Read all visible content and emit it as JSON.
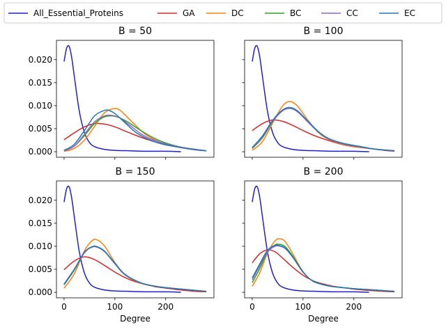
{
  "chart_data": {
    "type": "line",
    "legend": {
      "placement": "top",
      "ncol": 6,
      "entries": [
        {
          "name": "All_Essential_Proteins",
          "color": "#1f1fcc"
        },
        {
          "name": "GA",
          "color": "#d62728"
        },
        {
          "name": "DC",
          "color": "#ff7f0e"
        },
        {
          "name": "BC",
          "color": "#2ca02c"
        },
        {
          "name": "CC",
          "color": "#9467bd"
        },
        {
          "name": "EC",
          "color": "#1f77b4"
        }
      ]
    },
    "shared_axes": {
      "xlabel": "Degree",
      "xlim": [
        -15,
        295
      ],
      "ylim": [
        -0.0012,
        0.0242
      ],
      "xticks": [
        0,
        100,
        200
      ],
      "yticks": [
        0.0,
        0.005,
        0.01,
        0.015,
        0.02
      ],
      "ytick_labels": [
        "0.000",
        "0.005",
        "0.010",
        "0.015",
        "0.020"
      ],
      "grid": false
    },
    "panels": [
      {
        "title": "B = 50",
        "series": [
          {
            "name": "All_Essential_Proteins",
            "x": [
              0,
              5,
              10,
              15,
              20,
              30,
              40,
              50,
              60,
              80,
              100,
              130,
              160,
              200,
              230
            ],
            "y": [
              0.0196,
              0.0225,
              0.0229,
              0.0205,
              0.0165,
              0.0088,
              0.0042,
              0.002,
              0.0011,
              0.0005,
              0.0003,
              0.0002,
              0.0001,
              0.0001,
              0.0
            ]
          },
          {
            "name": "GA",
            "x": [
              0,
              20,
              40,
              60,
              80,
              100,
              120,
              140,
              160,
              180,
              200,
              230,
              260,
              280
            ],
            "y": [
              0.0026,
              0.0041,
              0.0054,
              0.0061,
              0.006,
              0.0054,
              0.0045,
              0.0036,
              0.0028,
              0.0021,
              0.0015,
              0.0009,
              0.0004,
              0.0002
            ]
          },
          {
            "name": "DC",
            "x": [
              0,
              20,
              40,
              60,
              80,
              100,
              110,
              120,
              140,
              160,
              180,
              200,
              230,
              260,
              280
            ],
            "y": [
              0.0001,
              0.0007,
              0.0025,
              0.0055,
              0.0085,
              0.0094,
              0.009,
              0.008,
              0.0058,
              0.0038,
              0.0025,
              0.0016,
              0.0009,
              0.0004,
              0.0002
            ]
          },
          {
            "name": "BC",
            "x": [
              0,
              20,
              40,
              60,
              80,
              100,
              120,
              140,
              160,
              180,
              200,
              230,
              260,
              280
            ],
            "y": [
              0.0002,
              0.0012,
              0.0035,
              0.0061,
              0.0076,
              0.0077,
              0.0068,
              0.0054,
              0.004,
              0.0028,
              0.0019,
              0.001,
              0.0005,
              0.0002
            ]
          },
          {
            "name": "CC",
            "x": [
              0,
              20,
              40,
              60,
              80,
              95,
              110,
              130,
              150,
              170,
              200,
              230,
              260,
              280
            ],
            "y": [
              0.0002,
              0.0012,
              0.0038,
              0.0065,
              0.0078,
              0.0079,
              0.0073,
              0.0057,
              0.004,
              0.0028,
              0.0017,
              0.001,
              0.0005,
              0.0002
            ]
          },
          {
            "name": "EC",
            "x": [
              0,
              20,
              40,
              60,
              80,
              90,
              100,
              120,
              140,
              160,
              180,
              200,
              230,
              260,
              280
            ],
            "y": [
              0.0003,
              0.0016,
              0.0046,
              0.0078,
              0.009,
              0.0089,
              0.0083,
              0.0063,
              0.0043,
              0.003,
              0.0021,
              0.0015,
              0.0009,
              0.0004,
              0.0002
            ]
          }
        ]
      },
      {
        "title": "B = 100",
        "series": [
          {
            "name": "All_Essential_Proteins",
            "x": [
              0,
              5,
              10,
              15,
              20,
              30,
              40,
              50,
              60,
              80,
              100,
              130,
              160,
              200,
              230
            ],
            "y": [
              0.0196,
              0.0225,
              0.0229,
              0.0205,
              0.0165,
              0.0088,
              0.0042,
              0.002,
              0.0011,
              0.0005,
              0.0003,
              0.0002,
              0.0001,
              0.0001,
              0.0
            ]
          },
          {
            "name": "GA",
            "x": [
              0,
              20,
              40,
              60,
              80,
              100,
              120,
              140,
              160,
              180,
              200,
              230,
              260,
              280
            ],
            "y": [
              0.0046,
              0.0061,
              0.0069,
              0.0066,
              0.0057,
              0.0046,
              0.0036,
              0.0028,
              0.0021,
              0.0015,
              0.0011,
              0.0007,
              0.0003,
              0.0001
            ]
          },
          {
            "name": "DC",
            "x": [
              0,
              20,
              40,
              60,
              75,
              90,
              110,
              130,
              150,
              180,
              210,
              240,
              280
            ],
            "y": [
              0.0003,
              0.0022,
              0.0062,
              0.01,
              0.0109,
              0.0098,
              0.0068,
              0.0042,
              0.0027,
              0.0016,
              0.001,
              0.0006,
              0.0002
            ]
          },
          {
            "name": "BC",
            "x": [
              0,
              20,
              40,
              60,
              75,
              90,
              110,
              130,
              150,
              180,
              210,
              240,
              280
            ],
            "y": [
              0.0007,
              0.003,
              0.0065,
              0.009,
              0.0096,
              0.0088,
              0.0065,
              0.0043,
              0.0028,
              0.0017,
              0.0011,
              0.0006,
              0.0002
            ]
          },
          {
            "name": "CC",
            "x": [
              0,
              20,
              40,
              60,
              75,
              90,
              110,
              130,
              150,
              180,
              210,
              240,
              280
            ],
            "y": [
              0.0008,
              0.0032,
              0.0066,
              0.0089,
              0.0094,
              0.0086,
              0.0064,
              0.0043,
              0.0028,
              0.0017,
              0.0011,
              0.0006,
              0.0002
            ]
          },
          {
            "name": "EC",
            "x": [
              0,
              20,
              40,
              60,
              75,
              90,
              110,
              130,
              150,
              180,
              210,
              240,
              280
            ],
            "y": [
              0.0009,
              0.0034,
              0.0068,
              0.0091,
              0.0096,
              0.0088,
              0.0066,
              0.0044,
              0.0029,
              0.0018,
              0.0012,
              0.0006,
              0.0002
            ]
          }
        ]
      },
      {
        "title": "B = 150",
        "series": [
          {
            "name": "All_Essential_Proteins",
            "x": [
              0,
              5,
              10,
              15,
              20,
              30,
              40,
              50,
              60,
              80,
              100,
              130,
              160,
              200,
              230
            ],
            "y": [
              0.0196,
              0.0225,
              0.0229,
              0.0205,
              0.0165,
              0.0088,
              0.0042,
              0.002,
              0.0011,
              0.0005,
              0.0003,
              0.0002,
              0.0001,
              0.0001,
              0.0
            ]
          },
          {
            "name": "GA",
            "x": [
              0,
              20,
              40,
              60,
              80,
              100,
              120,
              140,
              160,
              180,
              200,
              230,
              260,
              280
            ],
            "y": [
              0.0049,
              0.0068,
              0.0077,
              0.0071,
              0.0058,
              0.0044,
              0.0032,
              0.0023,
              0.0017,
              0.0012,
              0.0009,
              0.0005,
              0.0002,
              0.0001
            ]
          },
          {
            "name": "DC",
            "x": [
              0,
              20,
              40,
              55,
              65,
              80,
              100,
              120,
              150,
              180,
              210,
              240,
              280
            ],
            "y": [
              0.0009,
              0.004,
              0.009,
              0.0112,
              0.0114,
              0.01,
              0.0065,
              0.0038,
              0.002,
              0.0013,
              0.0009,
              0.0006,
              0.0002
            ]
          },
          {
            "name": "BC",
            "x": [
              0,
              20,
              40,
              55,
              65,
              80,
              100,
              120,
              150,
              180,
              210,
              240,
              280
            ],
            "y": [
              0.0016,
              0.0048,
              0.0086,
              0.0099,
              0.0099,
              0.0089,
              0.0062,
              0.0038,
              0.0021,
              0.0013,
              0.0009,
              0.0006,
              0.0002
            ]
          },
          {
            "name": "CC",
            "x": [
              0,
              20,
              40,
              55,
              65,
              80,
              100,
              120,
              150,
              180,
              210,
              240,
              280
            ],
            "y": [
              0.0017,
              0.0049,
              0.0086,
              0.0098,
              0.0098,
              0.0088,
              0.0062,
              0.0038,
              0.0021,
              0.0013,
              0.0009,
              0.0006,
              0.0002
            ]
          },
          {
            "name": "EC",
            "x": [
              0,
              20,
              40,
              55,
              65,
              80,
              100,
              120,
              150,
              180,
              210,
              240,
              280
            ],
            "y": [
              0.0018,
              0.005,
              0.0087,
              0.0099,
              0.0099,
              0.0089,
              0.0063,
              0.0039,
              0.0021,
              0.0013,
              0.0009,
              0.0006,
              0.0002
            ]
          }
        ]
      },
      {
        "title": "B = 200",
        "series": [
          {
            "name": "All_Essential_Proteins",
            "x": [
              0,
              5,
              10,
              15,
              20,
              30,
              40,
              50,
              60,
              80,
              100,
              130,
              160,
              200,
              230
            ],
            "y": [
              0.0196,
              0.0225,
              0.0229,
              0.0205,
              0.0165,
              0.0088,
              0.0042,
              0.002,
              0.0011,
              0.0005,
              0.0003,
              0.0002,
              0.0001,
              0.0001,
              0.0
            ]
          },
          {
            "name": "GA",
            "x": [
              0,
              15,
              30,
              45,
              60,
              80,
              100,
              120,
              140,
              160,
              180,
              200,
              230,
              260,
              280
            ],
            "y": [
              0.0064,
              0.0084,
              0.0092,
              0.0088,
              0.0074,
              0.0054,
              0.0037,
              0.0025,
              0.0018,
              0.0013,
              0.001,
              0.0007,
              0.0004,
              0.0002,
              0.0001
            ]
          },
          {
            "name": "DC",
            "x": [
              0,
              15,
              30,
              45,
              55,
              65,
              80,
              100,
              120,
              150,
              180,
              210,
              240,
              280
            ],
            "y": [
              0.0013,
              0.0043,
              0.0085,
              0.0112,
              0.0116,
              0.011,
              0.0083,
              0.0045,
              0.0024,
              0.0014,
              0.001,
              0.0007,
              0.0005,
              0.0002
            ]
          },
          {
            "name": "BC",
            "x": [
              0,
              15,
              30,
              45,
              55,
              65,
              80,
              100,
              120,
              150,
              180,
              210,
              240,
              280
            ],
            "y": [
              0.0021,
              0.0052,
              0.0087,
              0.0103,
              0.0104,
              0.0099,
              0.0078,
              0.0044,
              0.0024,
              0.0014,
              0.001,
              0.0007,
              0.0005,
              0.0002
            ]
          },
          {
            "name": "CC",
            "x": [
              0,
              15,
              30,
              45,
              55,
              65,
              80,
              100,
              120,
              150,
              180,
              210,
              240,
              280
            ],
            "y": [
              0.0027,
              0.0058,
              0.0088,
              0.01,
              0.01,
              0.0095,
              0.0076,
              0.0044,
              0.0024,
              0.0014,
              0.001,
              0.0007,
              0.0005,
              0.0002
            ]
          },
          {
            "name": "EC",
            "x": [
              0,
              15,
              30,
              45,
              55,
              65,
              80,
              100,
              120,
              150,
              180,
              210,
              240,
              280
            ],
            "y": [
              0.0031,
              0.0062,
              0.0091,
              0.0102,
              0.0101,
              0.0096,
              0.0076,
              0.0044,
              0.0024,
              0.0014,
              0.001,
              0.0007,
              0.0005,
              0.0002
            ]
          }
        ]
      }
    ]
  }
}
